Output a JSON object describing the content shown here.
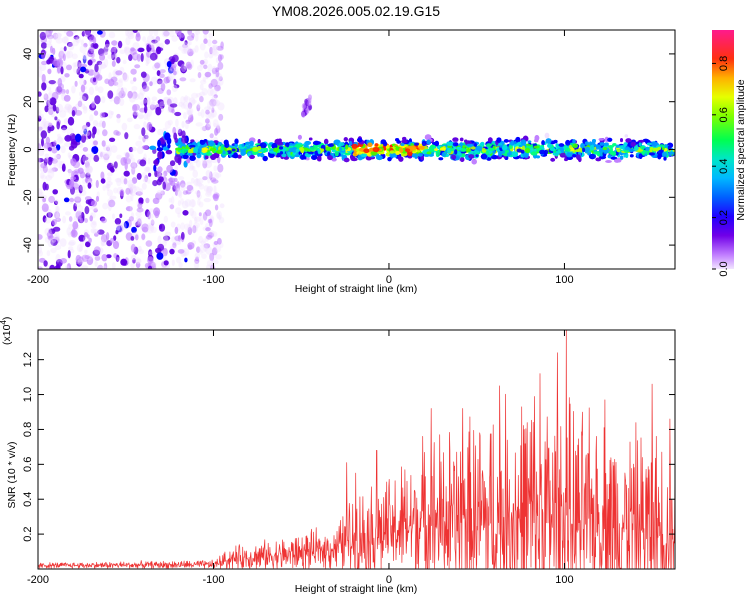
{
  "chart_data": [
    {
      "type": "heatmap",
      "title": "YM08.2026.005.02.19.G15",
      "xlabel": "Height of straight line (km)",
      "ylabel": "Frequency (Hz)",
      "xlim": [
        -200,
        163
      ],
      "ylim": [
        -50,
        50
      ],
      "x_ticks": [
        -200,
        -100,
        0,
        100
      ],
      "y_ticks": [
        -40,
        -20,
        0,
        20,
        40
      ],
      "colorbar": {
        "label": "Normalized spectral amplitude",
        "range": [
          0,
          0.93
        ],
        "ticks": [
          0.0,
          0.2,
          0.4,
          0.6,
          0.8
        ],
        "colors": [
          "#f0e0ff",
          "#c080ff",
          "#6000e0",
          "#0000ff",
          "#00a0ff",
          "#00e0e0",
          "#00ff80",
          "#40ff00",
          "#c0ff00",
          "#ffff00",
          "#ffa000",
          "#ff2000",
          "#ff00a0"
        ]
      },
      "features": {
        "scatter_region_km": [
          -200,
          -95
        ],
        "signal_band_start_km": -120,
        "signal_band_center_hz": 0,
        "signal_band_halfwidth_hz": 6,
        "peak_near_km": [
          -20,
          20
        ],
        "burst": {
          "x_km": -47,
          "y_hz": 18
        }
      }
    },
    {
      "type": "line",
      "xlabel": "Height of straight line (km)",
      "ylabel": "SNR (10 * v/v)",
      "y_multiplier": "(x10",
      "y_multiplier_exp": "4",
      "y_multiplier_close": ")",
      "xlim": [
        -200,
        163
      ],
      "ylim": [
        0,
        1.37
      ],
      "x_ticks": [
        -200,
        -100,
        0,
        100
      ],
      "y_ticks": [
        0.2,
        0.4,
        0.6,
        0.8,
        1.0,
        1.2
      ],
      "color": "#ee3333",
      "envelope": [
        {
          "x": -200,
          "base": 0.02,
          "amp": 0.02
        },
        {
          "x": -100,
          "base": 0.025,
          "amp": 0.03
        },
        {
          "x": -90,
          "base": 0.06,
          "amp": 0.08
        },
        {
          "x": -60,
          "base": 0.08,
          "amp": 0.12
        },
        {
          "x": -30,
          "base": 0.12,
          "amp": 0.15
        },
        {
          "x": -20,
          "base": 0.18,
          "amp": 0.32
        },
        {
          "x": 0,
          "base": 0.22,
          "amp": 0.35
        },
        {
          "x": 20,
          "base": 0.28,
          "amp": 0.55
        },
        {
          "x": 50,
          "base": 0.28,
          "amp": 0.7
        },
        {
          "x": 80,
          "base": 0.3,
          "amp": 0.9
        },
        {
          "x": 110,
          "base": 0.28,
          "amp": 0.72
        },
        {
          "x": 163,
          "base": 0.24,
          "amp": 0.6
        }
      ],
      "peaks": [
        {
          "x": -24,
          "y": 0.61
        },
        {
          "x": -19,
          "y": 0.55
        },
        {
          "x": -7,
          "y": 0.68
        },
        {
          "x": 24,
          "y": 0.92
        },
        {
          "x": 42,
          "y": 0.92
        },
        {
          "x": 63,
          "y": 1.05
        },
        {
          "x": 86,
          "y": 1.12
        },
        {
          "x": 96,
          "y": 1.24
        },
        {
          "x": 101,
          "y": 1.37
        },
        {
          "x": 123,
          "y": 0.97
        },
        {
          "x": 150,
          "y": 1.06
        },
        {
          "x": 160,
          "y": 0.86
        }
      ]
    }
  ]
}
